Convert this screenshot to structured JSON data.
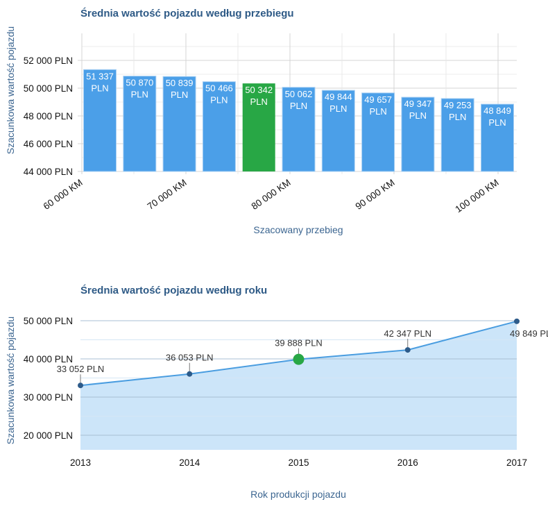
{
  "chart_data": [
    {
      "type": "bar",
      "title": "Średnia wartość pojazdu według przebiegu",
      "xlabel": "Szacowany przebieg",
      "ylabel": "Szacunkowa wartość pojazdu",
      "ylim": [
        44000,
        53000
      ],
      "yticks": [
        44000,
        46000,
        48000,
        50000,
        52000
      ],
      "ytick_labels": [
        "44 000 PLN",
        "46 000 PLN",
        "48 000 PLN",
        "50 000 PLN",
        "52 000 PLN"
      ],
      "xtick_labels": [
        "60 000 KM",
        "70 000 KM",
        "80 000 KM",
        "90 000 KM",
        "100 000 KM"
      ],
      "values": [
        51337,
        50870,
        50839,
        50466,
        50342,
        50062,
        49844,
        49657,
        49347,
        49253,
        48849
      ],
      "value_labels": [
        "51 337",
        "50 870",
        "50 839",
        "50 466",
        "50 342",
        "50 062",
        "49 844",
        "49 657",
        "49 347",
        "49 253",
        "48 849"
      ],
      "unit_label": "PLN",
      "highlight_index": 4,
      "colors": {
        "bar": "#4b9fe8",
        "highlight": "#28a745"
      },
      "grid": true
    },
    {
      "type": "area",
      "title": "Średnia wartość pojazdu według roku",
      "xlabel": "Rok produkcji pojazdu",
      "ylabel": "Szacunkowa wartość pojazdu",
      "x": [
        2013,
        2014,
        2015,
        2016,
        2017
      ],
      "values": [
        33052,
        36053,
        39888,
        42347,
        49849
      ],
      "value_labels": [
        "33 052 PLN",
        "36 053 PLN",
        "39 888 PLN",
        "42 347 PLN",
        "49 849 PLN"
      ],
      "ylim": [
        16300,
        52000
      ],
      "yticks": [
        20000,
        30000,
        40000,
        50000
      ],
      "ytick_labels": [
        "20 000 PLN",
        "30 000 PLN",
        "40 000 PLN",
        "50 000 PLN"
      ],
      "highlight_index": 2,
      "colors": {
        "line": "#4a9de0",
        "fill": "#c7e2f8",
        "point": "#2d5b8a",
        "highlight": "#28a745"
      },
      "grid": true
    }
  ]
}
